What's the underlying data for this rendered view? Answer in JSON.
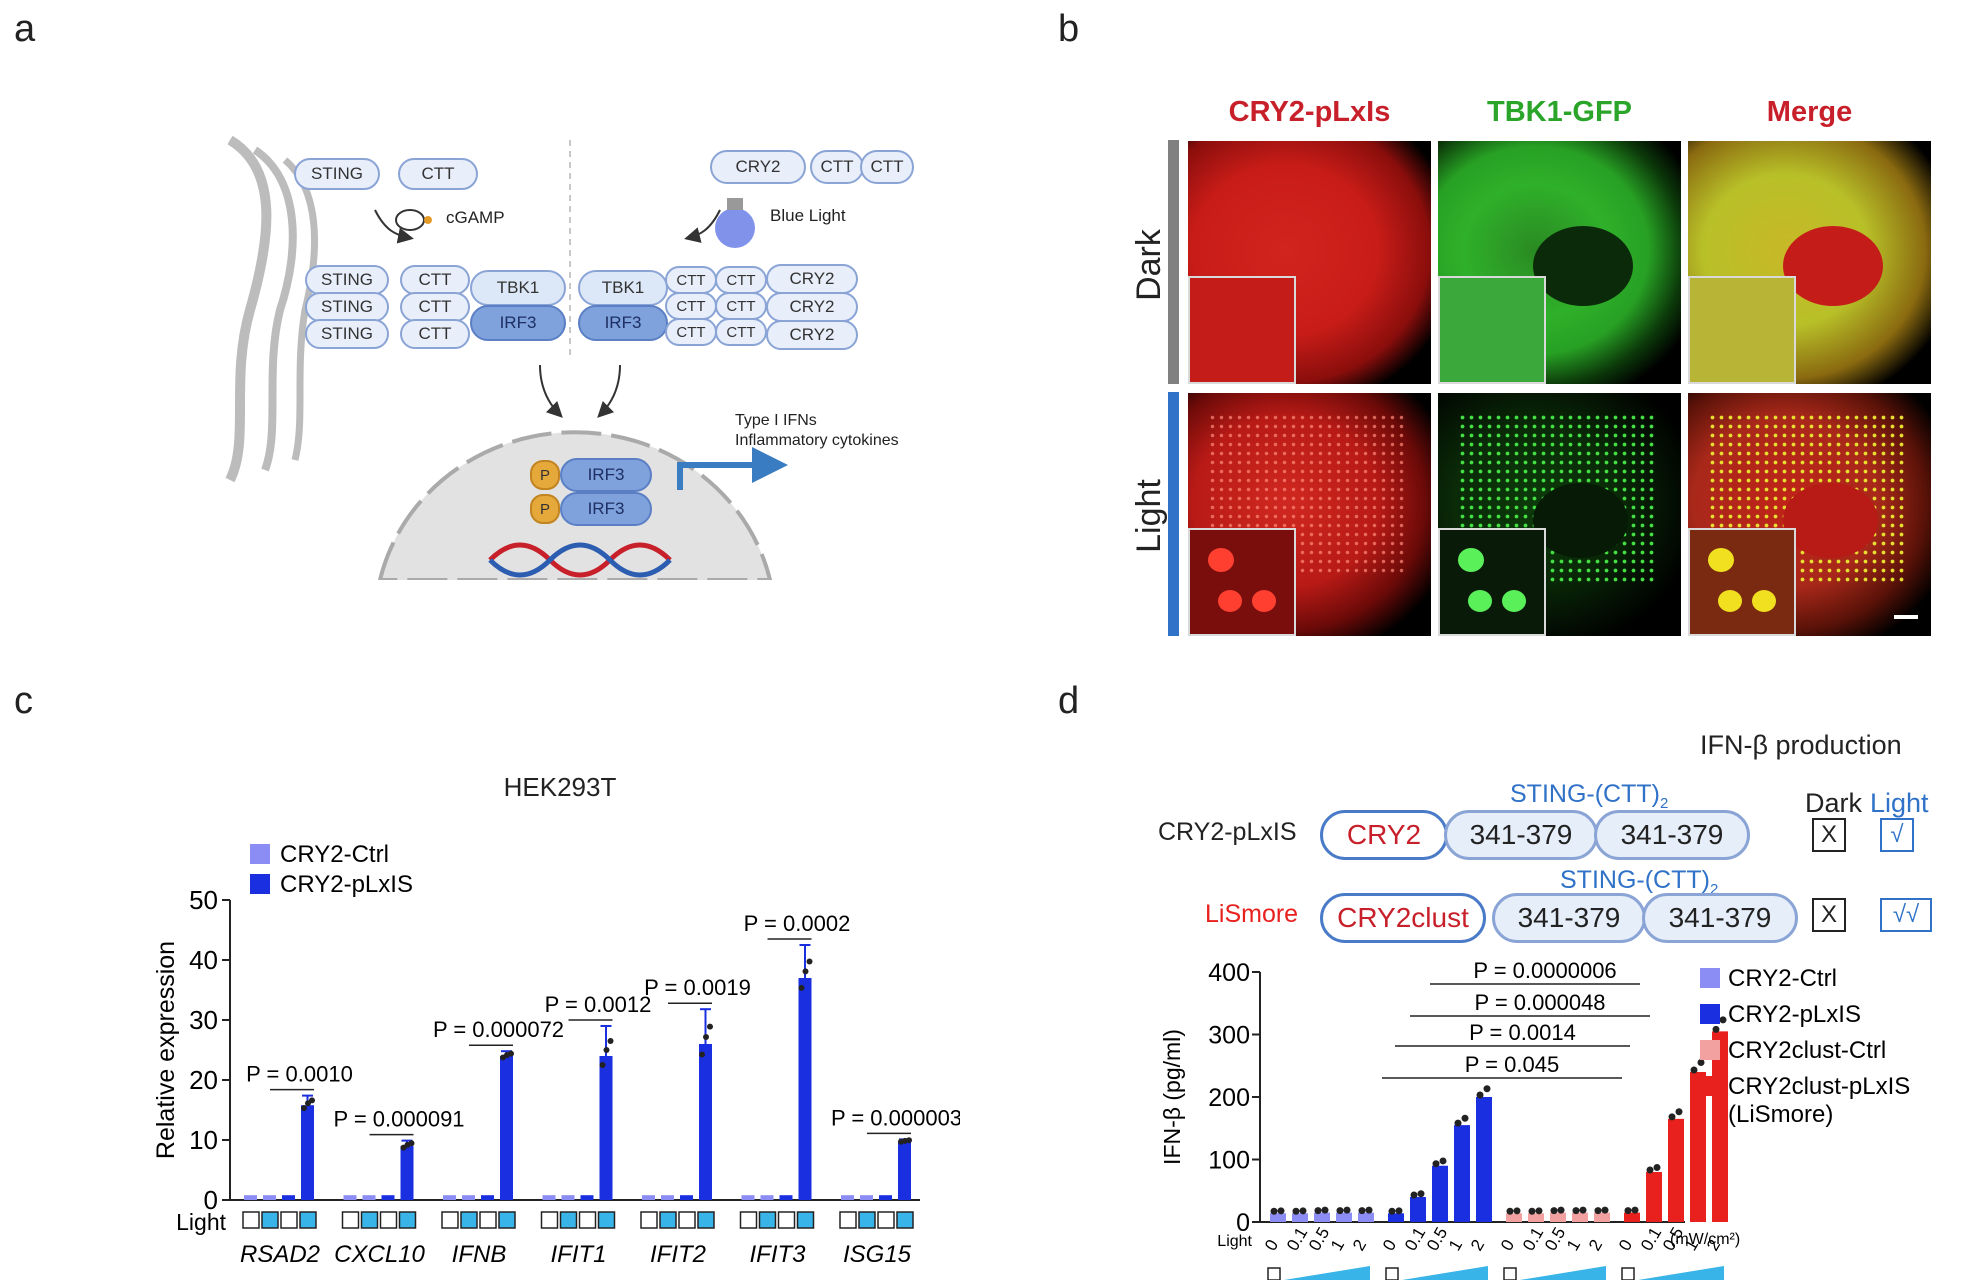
{
  "panels": {
    "a": "a",
    "b": "b",
    "c": "c",
    "d": "d"
  },
  "panel_a": {
    "sting": "STING",
    "ctt": "CTT",
    "cgamp": "cGAMP",
    "cry2": "CRY2",
    "blue_light": "Blue Light",
    "tbk1": "TBK1",
    "irf3": "IRF3",
    "p": "P",
    "output_line1": "Type I IFNs",
    "output_line2": "Inflammatory cytokines"
  },
  "panel_b": {
    "columns": [
      "CRY2-pLxIs",
      "TBK1-GFP",
      "Merge"
    ],
    "column_colors": [
      "#c8202a",
      "#2aa52a",
      "#c8202a"
    ],
    "rows": [
      "Dark",
      "Light"
    ],
    "row_bar_colors": [
      "#808080",
      "#2f72c8"
    ]
  },
  "chart_data": [
    {
      "type": "bar",
      "title": "HEK293T",
      "ylabel": "Relative expression",
      "ylim": [
        0,
        50
      ],
      "yticks": [
        0,
        10,
        20,
        30,
        40,
        50
      ],
      "xlabel_row": "Light",
      "categories": [
        "RSAD2",
        "CXCL10",
        "IFNB",
        "IFIT1",
        "IFIT2",
        "IFIT3",
        "ISG15"
      ],
      "series": [
        {
          "name": "CRY2-Ctrl",
          "color": "#8c8cf5"
        },
        {
          "name": "CRY2-pLxIS",
          "color": "#1a2fe0"
        }
      ],
      "bars_per_category": [
        {
          "series": "CRY2-Ctrl",
          "light": false
        },
        {
          "series": "CRY2-Ctrl",
          "light": true
        },
        {
          "series": "CRY2-pLxIS",
          "light": false
        },
        {
          "series": "CRY2-pLxIS",
          "light": true
        }
      ],
      "values": [
        [
          0.8,
          0.8,
          0.8,
          15.8
        ],
        [
          0.8,
          0.8,
          0.8,
          9.0
        ],
        [
          0.8,
          0.8,
          0.8,
          24.0
        ],
        [
          0.8,
          0.8,
          0.8,
          24.0
        ],
        [
          0.8,
          0.8,
          0.8,
          26.0
        ],
        [
          0.8,
          0.8,
          0.8,
          37.0
        ],
        [
          0.8,
          0.8,
          0.8,
          9.8
        ]
      ],
      "errors": [
        1.6,
        0.9,
        0.8,
        5.0,
        5.8,
        5.5,
        0.3
      ],
      "p_values": [
        "P = 0.0010",
        "P = 0.000091",
        "P = 0.000072",
        "P = 0.0012",
        "P = 0.0019",
        "P = 0.0002",
        "P = 0.000003"
      ]
    },
    {
      "type": "bar",
      "title": "",
      "ylabel": "IFN-β (pg/ml)",
      "ylim": [
        0,
        400
      ],
      "yticks": [
        0,
        100,
        200,
        300,
        400
      ],
      "xlabel_row": "Light",
      "x_unit": "(mW/cm²)",
      "dose_labels": [
        "0",
        "0.1",
        "0.5",
        "1",
        "2"
      ],
      "series": [
        {
          "name": "CRY2-Ctrl",
          "color": "#8c8cf5",
          "values": [
            14,
            14,
            15,
            15,
            15
          ]
        },
        {
          "name": "CRY2-pLxIS",
          "color": "#1a2fe0",
          "values": [
            14,
            40,
            90,
            155,
            200
          ]
        },
        {
          "name": "CRY2clust-Ctrl",
          "color": "#f2a0a0",
          "values": [
            14,
            14,
            15,
            15,
            15
          ]
        },
        {
          "name": "CRY2clust-pLxIS (LiSmore)",
          "color": "#e8201e",
          "values": [
            15,
            80,
            165,
            240,
            305
          ]
        }
      ],
      "legend": [
        "CRY2-Ctrl",
        "CRY2-pLxIS",
        "CRY2clust-Ctrl",
        "CRY2clust-pLxIS",
        "(LiSmore)"
      ],
      "p_values": [
        "P = 0.0000006",
        "P = 0.000048",
        "P = 0.0014",
        "P = 0.045"
      ]
    }
  ],
  "panel_d": {
    "header": "IFN-β production",
    "dark": "Dark",
    "light": "Light",
    "construct1_name": "CRY2-pLxIS",
    "construct1_domain": "CRY2",
    "construct2_name": "LiSmore",
    "construct2_domain": "CRY2clust",
    "sting_label": "STING-(CTT)",
    "sting_sub": "2",
    "segment": "341-379",
    "dark_mark": "X",
    "light_mark1": "√",
    "light_mark2": "√√"
  }
}
